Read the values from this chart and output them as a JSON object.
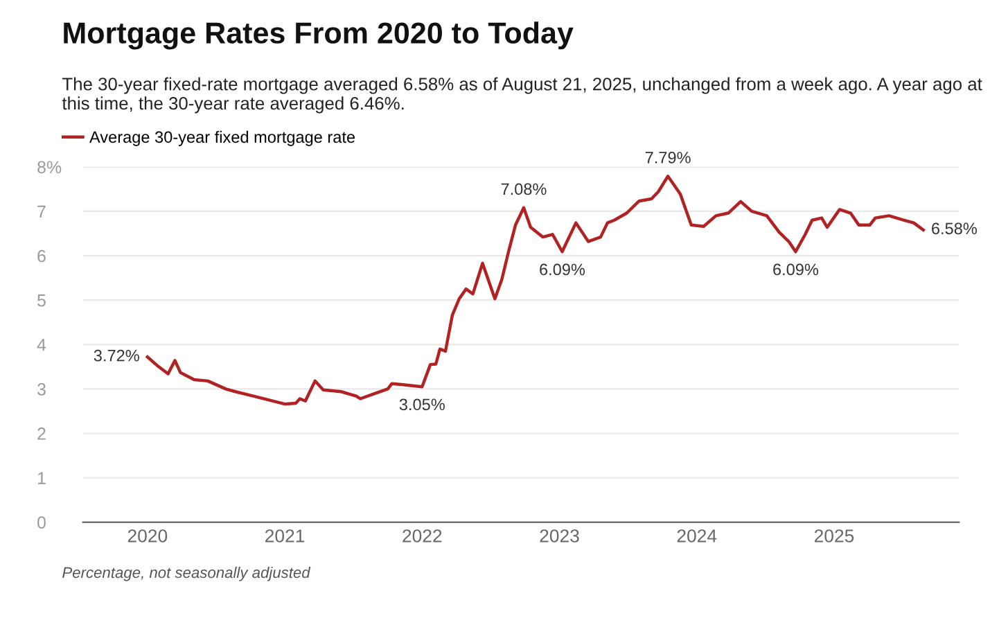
{
  "chart_data": {
    "type": "line",
    "title": "Mortgage Rates From 2020 to Today",
    "subtitle": "The 30-year fixed-rate mortgage averaged 6.58% as of August 21, 2025, unchanged from a week ago. A year ago at this time, the 30-year rate averaged 6.46%.",
    "series": [
      {
        "name": "Average 30-year fixed mortgage rate",
        "color": "#b22222",
        "x": [
          2020.0,
          2020.07,
          2020.15,
          2020.2,
          2020.24,
          2020.34,
          2020.44,
          2020.57,
          2020.64,
          2020.77,
          2020.91,
          2021.0,
          2021.08,
          2021.11,
          2021.15,
          2021.22,
          2021.28,
          2021.41,
          2021.52,
          2021.55,
          2021.65,
          2021.75,
          2021.78,
          2021.85,
          2022.0,
          2022.06,
          2022.1,
          2022.13,
          2022.17,
          2022.22,
          2022.27,
          2022.32,
          2022.37,
          2022.44,
          2022.53,
          2022.58,
          2022.63,
          2022.68,
          2022.74,
          2022.79,
          2022.88,
          2022.95,
          2023.02,
          2023.12,
          2023.21,
          2023.3,
          2023.35,
          2023.4,
          2023.49,
          2023.58,
          2023.67,
          2023.72,
          2023.79,
          2023.88,
          2023.96,
          2024.05,
          2024.14,
          2024.23,
          2024.32,
          2024.4,
          2024.51,
          2024.6,
          2024.67,
          2024.72,
          2024.79,
          2024.84,
          2024.91,
          2024.95,
          2025.04,
          2025.12,
          2025.18,
          2025.26,
          2025.3,
          2025.4,
          2025.51,
          2025.58,
          2025.65
        ],
        "values": [
          3.72,
          3.53,
          3.34,
          3.64,
          3.37,
          3.21,
          3.18,
          3.0,
          2.94,
          2.84,
          2.73,
          2.66,
          2.68,
          2.78,
          2.73,
          3.18,
          2.98,
          2.94,
          2.84,
          2.78,
          2.89,
          3.0,
          3.12,
          3.1,
          3.05,
          3.55,
          3.56,
          3.9,
          3.85,
          4.66,
          5.03,
          5.25,
          5.14,
          5.83,
          5.03,
          5.46,
          6.1,
          6.69,
          7.08,
          6.64,
          6.42,
          6.48,
          6.09,
          6.74,
          6.32,
          6.42,
          6.74,
          6.8,
          6.96,
          7.23,
          7.28,
          7.44,
          7.79,
          7.39,
          6.69,
          6.66,
          6.9,
          6.96,
          7.22,
          7.0,
          6.9,
          6.53,
          6.32,
          6.09,
          6.48,
          6.8,
          6.85,
          6.64,
          7.04,
          6.96,
          6.69,
          6.69,
          6.85,
          6.9,
          6.8,
          6.74,
          6.58
        ]
      }
    ],
    "xlim": [
      2019.53,
      2025.91
    ],
    "xticks": [
      2020,
      2021,
      2022,
      2023,
      2024,
      2025
    ],
    "ylim": [
      0,
      8
    ],
    "yticks": [
      0,
      1,
      2,
      3,
      4,
      5,
      6,
      7,
      {
        "value": 8,
        "label": "8%"
      }
    ],
    "grid": "y",
    "legend": "top left",
    "line_style": "solid",
    "marker": "none",
    "annotations": [
      {
        "text": "3.72%",
        "x": 2020.0,
        "y": 3.72
      },
      {
        "text": "3.05%",
        "x": 2022.0,
        "y": 3.05
      },
      {
        "text": "7.08%",
        "x": 2022.74,
        "y": 7.08
      },
      {
        "text": "6.09%",
        "x": 2023.02,
        "y": 6.09
      },
      {
        "text": "7.79%",
        "x": 2023.79,
        "y": 7.79
      },
      {
        "text": "6.09%",
        "x": 2024.72,
        "y": 6.09
      },
      {
        "text": "6.58%",
        "x": 2025.65,
        "y": 6.58
      },
      "Percentage, not seasonally adjusted"
    ]
  }
}
